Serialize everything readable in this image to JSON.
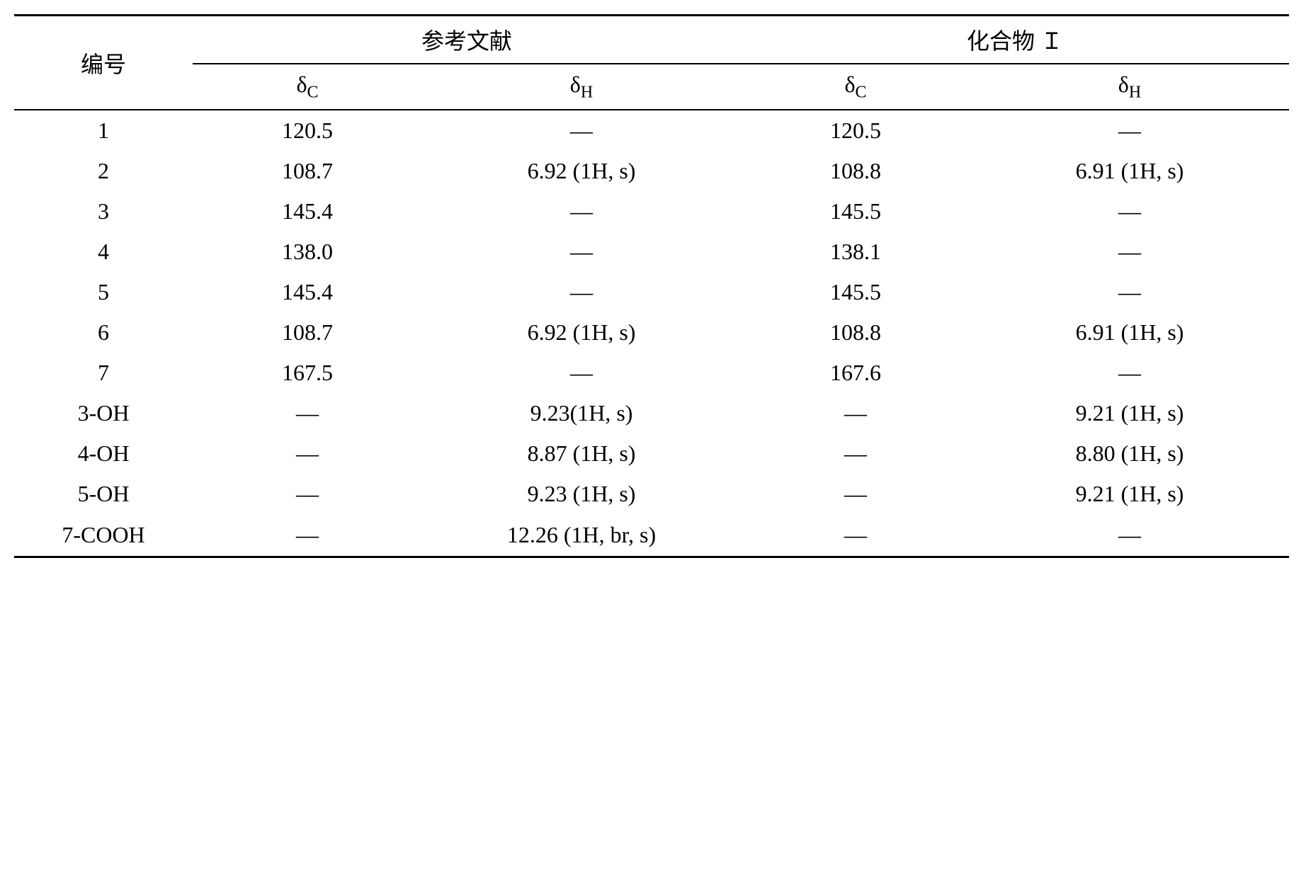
{
  "table": {
    "headers": {
      "row_label": "编号",
      "group1": "参考文献",
      "group2": "化合物 Ｉ",
      "delta_c": "δ",
      "delta_c_sub": "C",
      "delta_h": "δ",
      "delta_h_sub": "H"
    },
    "rows": [
      {
        "num": "1",
        "ref_dc": "120.5",
        "ref_dh": "—",
        "comp_dc": "120.5",
        "comp_dh": "—"
      },
      {
        "num": "2",
        "ref_dc": "108.7",
        "ref_dh": "6.92 (1H, s)",
        "comp_dc": "108.8",
        "comp_dh": "6.91 (1H, s)"
      },
      {
        "num": "3",
        "ref_dc": "145.4",
        "ref_dh": "—",
        "comp_dc": "145.5",
        "comp_dh": "—"
      },
      {
        "num": "4",
        "ref_dc": "138.0",
        "ref_dh": "—",
        "comp_dc": "138.1",
        "comp_dh": "—"
      },
      {
        "num": "5",
        "ref_dc": "145.4",
        "ref_dh": "—",
        "comp_dc": "145.5",
        "comp_dh": "—"
      },
      {
        "num": "6",
        "ref_dc": "108.7",
        "ref_dh": "6.92 (1H, s)",
        "comp_dc": "108.8",
        "comp_dh": "6.91 (1H, s)"
      },
      {
        "num": "7",
        "ref_dc": "167.5",
        "ref_dh": "—",
        "comp_dc": "167.6",
        "comp_dh": "—"
      },
      {
        "num": "3-OH",
        "ref_dc": "—",
        "ref_dh": "9.23(1H, s)",
        "comp_dc": "—",
        "comp_dh": "9.21 (1H, s)"
      },
      {
        "num": "4-OH",
        "ref_dc": "—",
        "ref_dh": "8.87 (1H, s)",
        "comp_dc": "—",
        "comp_dh": "8.80 (1H, s)"
      },
      {
        "num": "5-OH",
        "ref_dc": "—",
        "ref_dh": "9.23 (1H, s)",
        "comp_dc": "—",
        "comp_dh": "9.21 (1H, s)"
      },
      {
        "num": "7-COOH",
        "ref_dc": "—",
        "ref_dh": "12.26 (1H, br, s)",
        "comp_dc": "—",
        "comp_dh": "—"
      }
    ],
    "styling": {
      "font_family": "Times New Roman, SimSun, serif",
      "cell_fontsize": 32,
      "subscript_fontsize": 24,
      "text_color": "#000000",
      "background_color": "#ffffff",
      "border_color": "#000000",
      "top_rule_width": 3,
      "mid_rule_width": 2,
      "bottom_rule_width": 3,
      "text_align": "center",
      "column_widths_pct": [
        14,
        18,
        25,
        18,
        25
      ]
    }
  }
}
